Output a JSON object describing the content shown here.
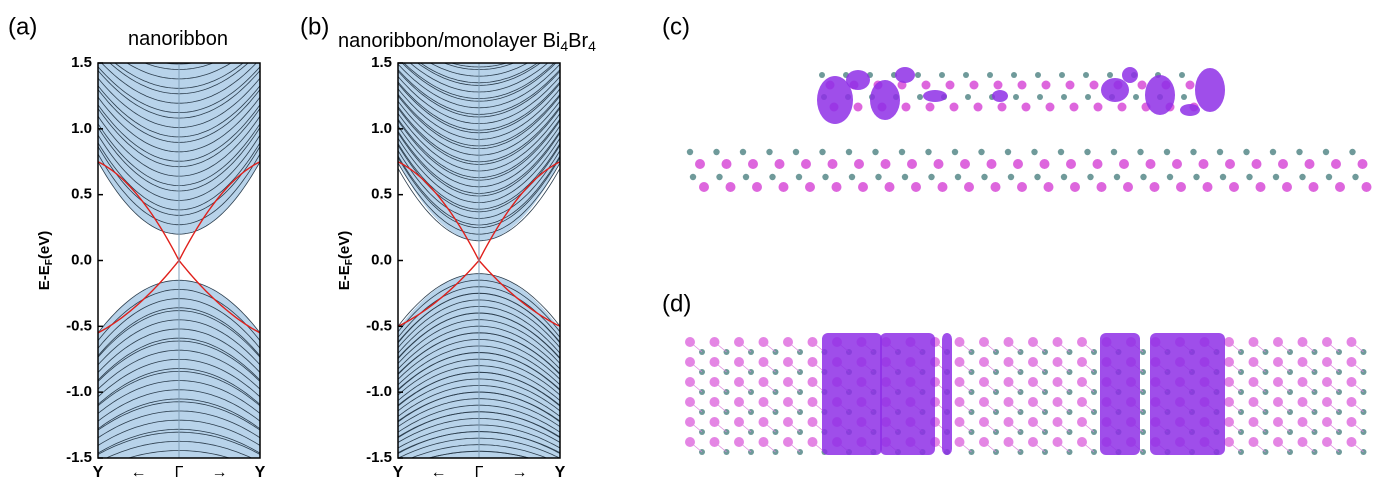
{
  "panels": [
    {
      "label": "(a)",
      "title": [
        "nanoribbon"
      ],
      "ylabel": [
        "E-E",
        "F",
        "(eV)"
      ],
      "ylim": [
        -1.5,
        1.5
      ],
      "yticks": [
        1.5,
        {
          "value": 1,
          "label": "1.0"
        },
        0.5,
        {
          "value": 0,
          "label": "0.0"
        },
        -0.5,
        {
          "value": -1,
          "label": "-1.0"
        },
        -1.5
      ],
      "xticks": [
        "Y",
        "←",
        "Γ",
        "→",
        "Y"
      ]
    },
    {
      "label": "(b)",
      "title": [
        "nanoribbon/monolayer Bi",
        "4",
        "Br",
        "4"
      ],
      "ylabel": [
        "E-E",
        "F",
        "(eV)"
      ],
      "ylim": [
        -1.5,
        1.5
      ],
      "yticks": [
        1.5,
        {
          "value": 1,
          "label": "1.0"
        },
        0.5,
        {
          "value": 0,
          "label": "0.0"
        },
        -0.5,
        {
          "value": -1,
          "label": "-1.0"
        },
        -1.5
      ],
      "xticks": [
        "Y",
        "←",
        "Γ",
        "→",
        "Y"
      ]
    },
    {
      "label": "(c)"
    },
    {
      "label": "(d)"
    }
  ]
}
